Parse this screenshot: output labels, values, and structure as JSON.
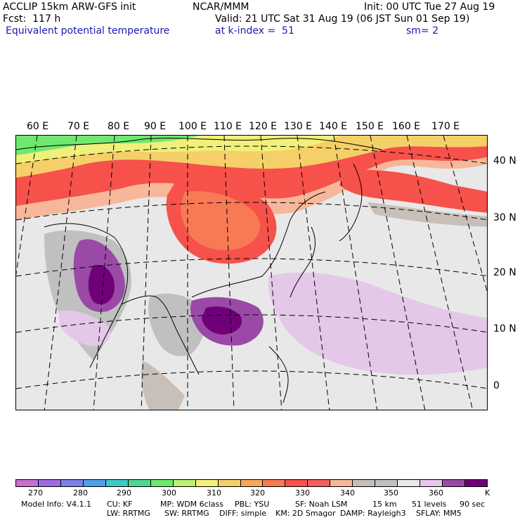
{
  "header": {
    "line1_left": "ACCLIP 15km ARW-GFS init",
    "line1_center": "NCAR/MMM",
    "line1_right": "Init: 00 UTC Tue 27 Aug 19",
    "line2_left": "Fcst:  117 h",
    "line2_right": "Valid: 21 UTC Sat 31 Aug 19 (06 JST Sun 01 Sep 19)",
    "line3_field": "Equivalent potential temperature",
    "line3_level": "at k-index =  51",
    "line3_smooth": "sm= 2"
  },
  "longitude_labels": [
    "60 E",
    "70 E",
    "80 E",
    "90 E",
    "100 E",
    "110 E",
    "120 E",
    "130 E",
    "140 E",
    "150 E",
    "160 E",
    "170 E"
  ],
  "latitude_labels": [
    "40 N",
    "30 N",
    "20 N",
    "10 N",
    "0"
  ],
  "colorbar": {
    "colors": [
      "#c86fd0",
      "#a06be0",
      "#7f7fe8",
      "#4fa0e8",
      "#3fc8c8",
      "#4cd890",
      "#6fe870",
      "#b8f070",
      "#f0f07a",
      "#f5cf68",
      "#f6a860",
      "#f77a55",
      "#f6514a",
      "#f2605a",
      "#f7b79a",
      "#c8c0b8",
      "#c0c0c0",
      "#e8e8e8",
      "#e4c8e8",
      "#9a4aa6",
      "#70007a"
    ],
    "tick_labels": [
      "270",
      "280",
      "290",
      "300",
      "310",
      "320",
      "330",
      "340",
      "350",
      "360"
    ],
    "units": "K"
  },
  "footer": {
    "line1": [
      "Model Info: V4.1.1",
      "CU: KF",
      "MP: WDM 6class",
      "PBL: YSU",
      "SF: Noah LSM",
      "15 km",
      "51 levels",
      "90 sec"
    ],
    "line2": [
      "LW: RRTMG",
      "SW: RRTMG",
      "DIFF: simple",
      "KM: 2D Smagor",
      "DAMP: Rayleigh3",
      "SFLAY: MM5"
    ]
  }
}
